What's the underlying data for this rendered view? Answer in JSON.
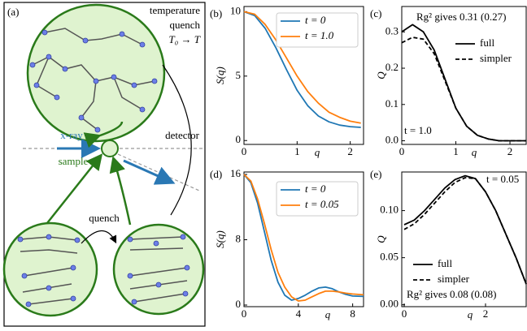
{
  "diagram": {
    "label": "(a)",
    "quench_title": [
      "temperature",
      "quench",
      "T₀ → T"
    ],
    "xray": "x-ray",
    "detector": "detector",
    "sample": "sample",
    "quench": "quench"
  },
  "chart_data": [
    {
      "type": "line",
      "label": "(b)",
      "xlabel": "q",
      "ylabel": "S(q)",
      "x": [
        0,
        0.2,
        0.4,
        0.6,
        0.8,
        1.0,
        1.2,
        1.4,
        1.6,
        1.8,
        2.0,
        2.2
      ],
      "series": [
        {
          "name": "t = 0",
          "color": "#1f77b4",
          "linestyle": "solid",
          "values": [
            10,
            9.7,
            8.7,
            7.2,
            5.5,
            3.9,
            2.7,
            1.9,
            1.45,
            1.2,
            1.08,
            1.02
          ]
        },
        {
          "name": "t = 1.0",
          "color": "#ff7f0e",
          "linestyle": "solid",
          "values": [
            10,
            9.8,
            9.0,
            7.8,
            6.4,
            5.0,
            3.8,
            2.9,
            2.2,
            1.8,
            1.5,
            1.35
          ]
        }
      ],
      "xlim": [
        0,
        2.25
      ],
      "ylim": [
        -0.3,
        10.4
      ],
      "xticks": [
        0,
        1,
        2
      ],
      "yticks": [
        0,
        5,
        10
      ],
      "legend": "upper right",
      "annotations": []
    },
    {
      "type": "line",
      "label": "(c)",
      "xlabel": "q",
      "ylabel": "Q",
      "x": [
        0,
        0.2,
        0.4,
        0.6,
        0.8,
        1.0,
        1.2,
        1.4,
        1.6,
        1.8,
        2.0,
        2.3
      ],
      "series": [
        {
          "name": "full",
          "color": "#000000",
          "linestyle": "solid",
          "values": [
            0.3,
            0.32,
            0.3,
            0.25,
            0.17,
            0.09,
            0.04,
            0.015,
            0.005,
            0,
            0,
            0
          ]
        },
        {
          "name": "simpler",
          "color": "#000000",
          "linestyle": "dashed",
          "values": [
            0.27,
            0.285,
            0.28,
            0.24,
            0.165,
            0.09,
            0.04,
            0.015,
            0.005,
            0,
            0,
            0
          ]
        }
      ],
      "xlim": [
        0,
        2.3
      ],
      "ylim": [
        -0.01,
        0.37
      ],
      "xticks": [
        0,
        1,
        2
      ],
      "yticks": [
        {
          "value": 0,
          "label": "0.0"
        },
        {
          "value": 0.1,
          "label": "0.1"
        },
        {
          "value": 0.2,
          "label": "0.2"
        },
        {
          "value": 0.3,
          "label": "0.3"
        }
      ],
      "legend": "upper right",
      "annotations": [
        "Rg² gives 0.31 (0.27)",
        "t = 1.0"
      ]
    },
    {
      "type": "line",
      "label": "(d)",
      "xlabel": "q",
      "ylabel": "S(q)",
      "x": [
        0,
        0.5,
        1,
        1.5,
        2,
        2.5,
        3,
        3.5,
        4,
        4.5,
        5,
        5.5,
        6,
        6.5,
        7,
        7.5,
        8,
        8.8
      ],
      "series": [
        {
          "name": "t = 0",
          "color": "#1f77b4",
          "linestyle": "solid",
          "values": [
            16,
            15,
            12.5,
            9,
            5.5,
            2.8,
            1.2,
            0.6,
            0.8,
            1.2,
            1.7,
            2.1,
            2.2,
            2.0,
            1.6,
            1.3,
            1.1,
            1.05
          ]
        },
        {
          "name": "t = 0.05",
          "color": "#ff7f0e",
          "linestyle": "solid",
          "values": [
            16,
            15.2,
            13,
            10,
            6.8,
            4,
            2.2,
            1.0,
            0.5,
            0.6,
            1.0,
            1.4,
            1.7,
            1.7,
            1.6,
            1.45,
            1.35,
            1.25
          ]
        }
      ],
      "xlim": [
        0,
        8.8
      ],
      "ylim": [
        -0.2,
        16.3
      ],
      "xticks": [
        0,
        4,
        8
      ],
      "yticks": [
        0,
        8,
        16
      ],
      "legend": "upper right",
      "annotations": []
    },
    {
      "type": "line",
      "label": "(e)",
      "xlabel": "q",
      "ylabel": "Q",
      "x": [
        0,
        0.25,
        0.5,
        0.75,
        1.0,
        1.25,
        1.5,
        1.75,
        2.0,
        2.25,
        2.5,
        2.75,
        3.0
      ],
      "series": [
        {
          "name": "full",
          "color": "#000000",
          "linestyle": "solid",
          "values": [
            0.085,
            0.09,
            0.1,
            0.112,
            0.124,
            0.133,
            0.137,
            0.134,
            0.12,
            0.1,
            0.075,
            0.05,
            0.022
          ]
        },
        {
          "name": "simpler",
          "color": "#000000",
          "linestyle": "dashed",
          "values": [
            0.08,
            0.086,
            0.096,
            0.108,
            0.12,
            0.13,
            0.135,
            0.134,
            0.12,
            0.1,
            0.075,
            0.05,
            0.022
          ]
        }
      ],
      "xlim": [
        -0.06,
        3.0
      ],
      "ylim": [
        -0.002,
        0.141
      ],
      "xticks": [
        0,
        2
      ],
      "yticks": [
        {
          "value": 0,
          "label": "0.00"
        },
        {
          "value": 0.05,
          "label": "0.05"
        },
        {
          "value": 0.1,
          "label": "0.10"
        }
      ],
      "legend": "lower left",
      "annotations": [
        "t = 0.05",
        "Rg² gives 0.08 (0.08)"
      ]
    }
  ]
}
